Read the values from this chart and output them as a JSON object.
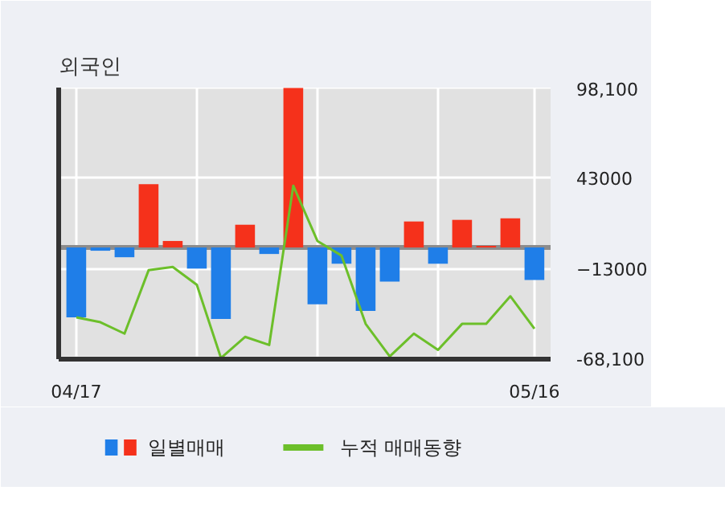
{
  "chart_data": {
    "type": "bar",
    "title": "외국인",
    "categories": [
      "04/17",
      null,
      null,
      null,
      null,
      null,
      null,
      null,
      null,
      null,
      null,
      null,
      null,
      null,
      null,
      null,
      null,
      null,
      null,
      "05/16"
    ],
    "series": [
      {
        "name": "일별매매",
        "values": [
          -43000,
          -2000,
          -6000,
          39000,
          4000,
          -13000,
          -44000,
          14000,
          -4000,
          98100,
          -35000,
          -10000,
          -39000,
          -21000,
          16000,
          -10000,
          17000,
          1000,
          18000,
          -20000
        ],
        "colors": [
          "#1f7ee8",
          "#1f7ee8",
          "#1f7ee8",
          "#f5311b",
          "#f5311b",
          "#1f7ee8",
          "#1f7ee8",
          "#f5311b",
          "#1f7ee8",
          "#f5311b",
          "#1f7ee8",
          "#1f7ee8",
          "#1f7ee8",
          "#1f7ee8",
          "#f5311b",
          "#1f7ee8",
          "#f5311b",
          "#f5311b",
          "#f5311b",
          "#1f7ee8"
        ]
      },
      {
        "name": "누적 매매동향",
        "type": "line",
        "color": "#6cbf2a",
        "values": [
          -43000,
          -46000,
          -53000,
          -14000,
          -12000,
          -23000,
          -68000,
          -55000,
          -60000,
          38000,
          4000,
          -5000,
          -47000,
          -67000,
          -53000,
          -63000,
          -47000,
          -47000,
          -30000,
          -50000
        ]
      }
    ],
    "ylim": [
      -68700,
      98400
    ],
    "yticks": [
      {
        "value": 98100,
        "label": "98,100"
      },
      43000,
      -13000,
      {
        "value": -68100,
        "label": "-68,100"
      }
    ],
    "grid": true,
    "legend": "bottom",
    "marker": "none",
    "line_style": "solid"
  }
}
